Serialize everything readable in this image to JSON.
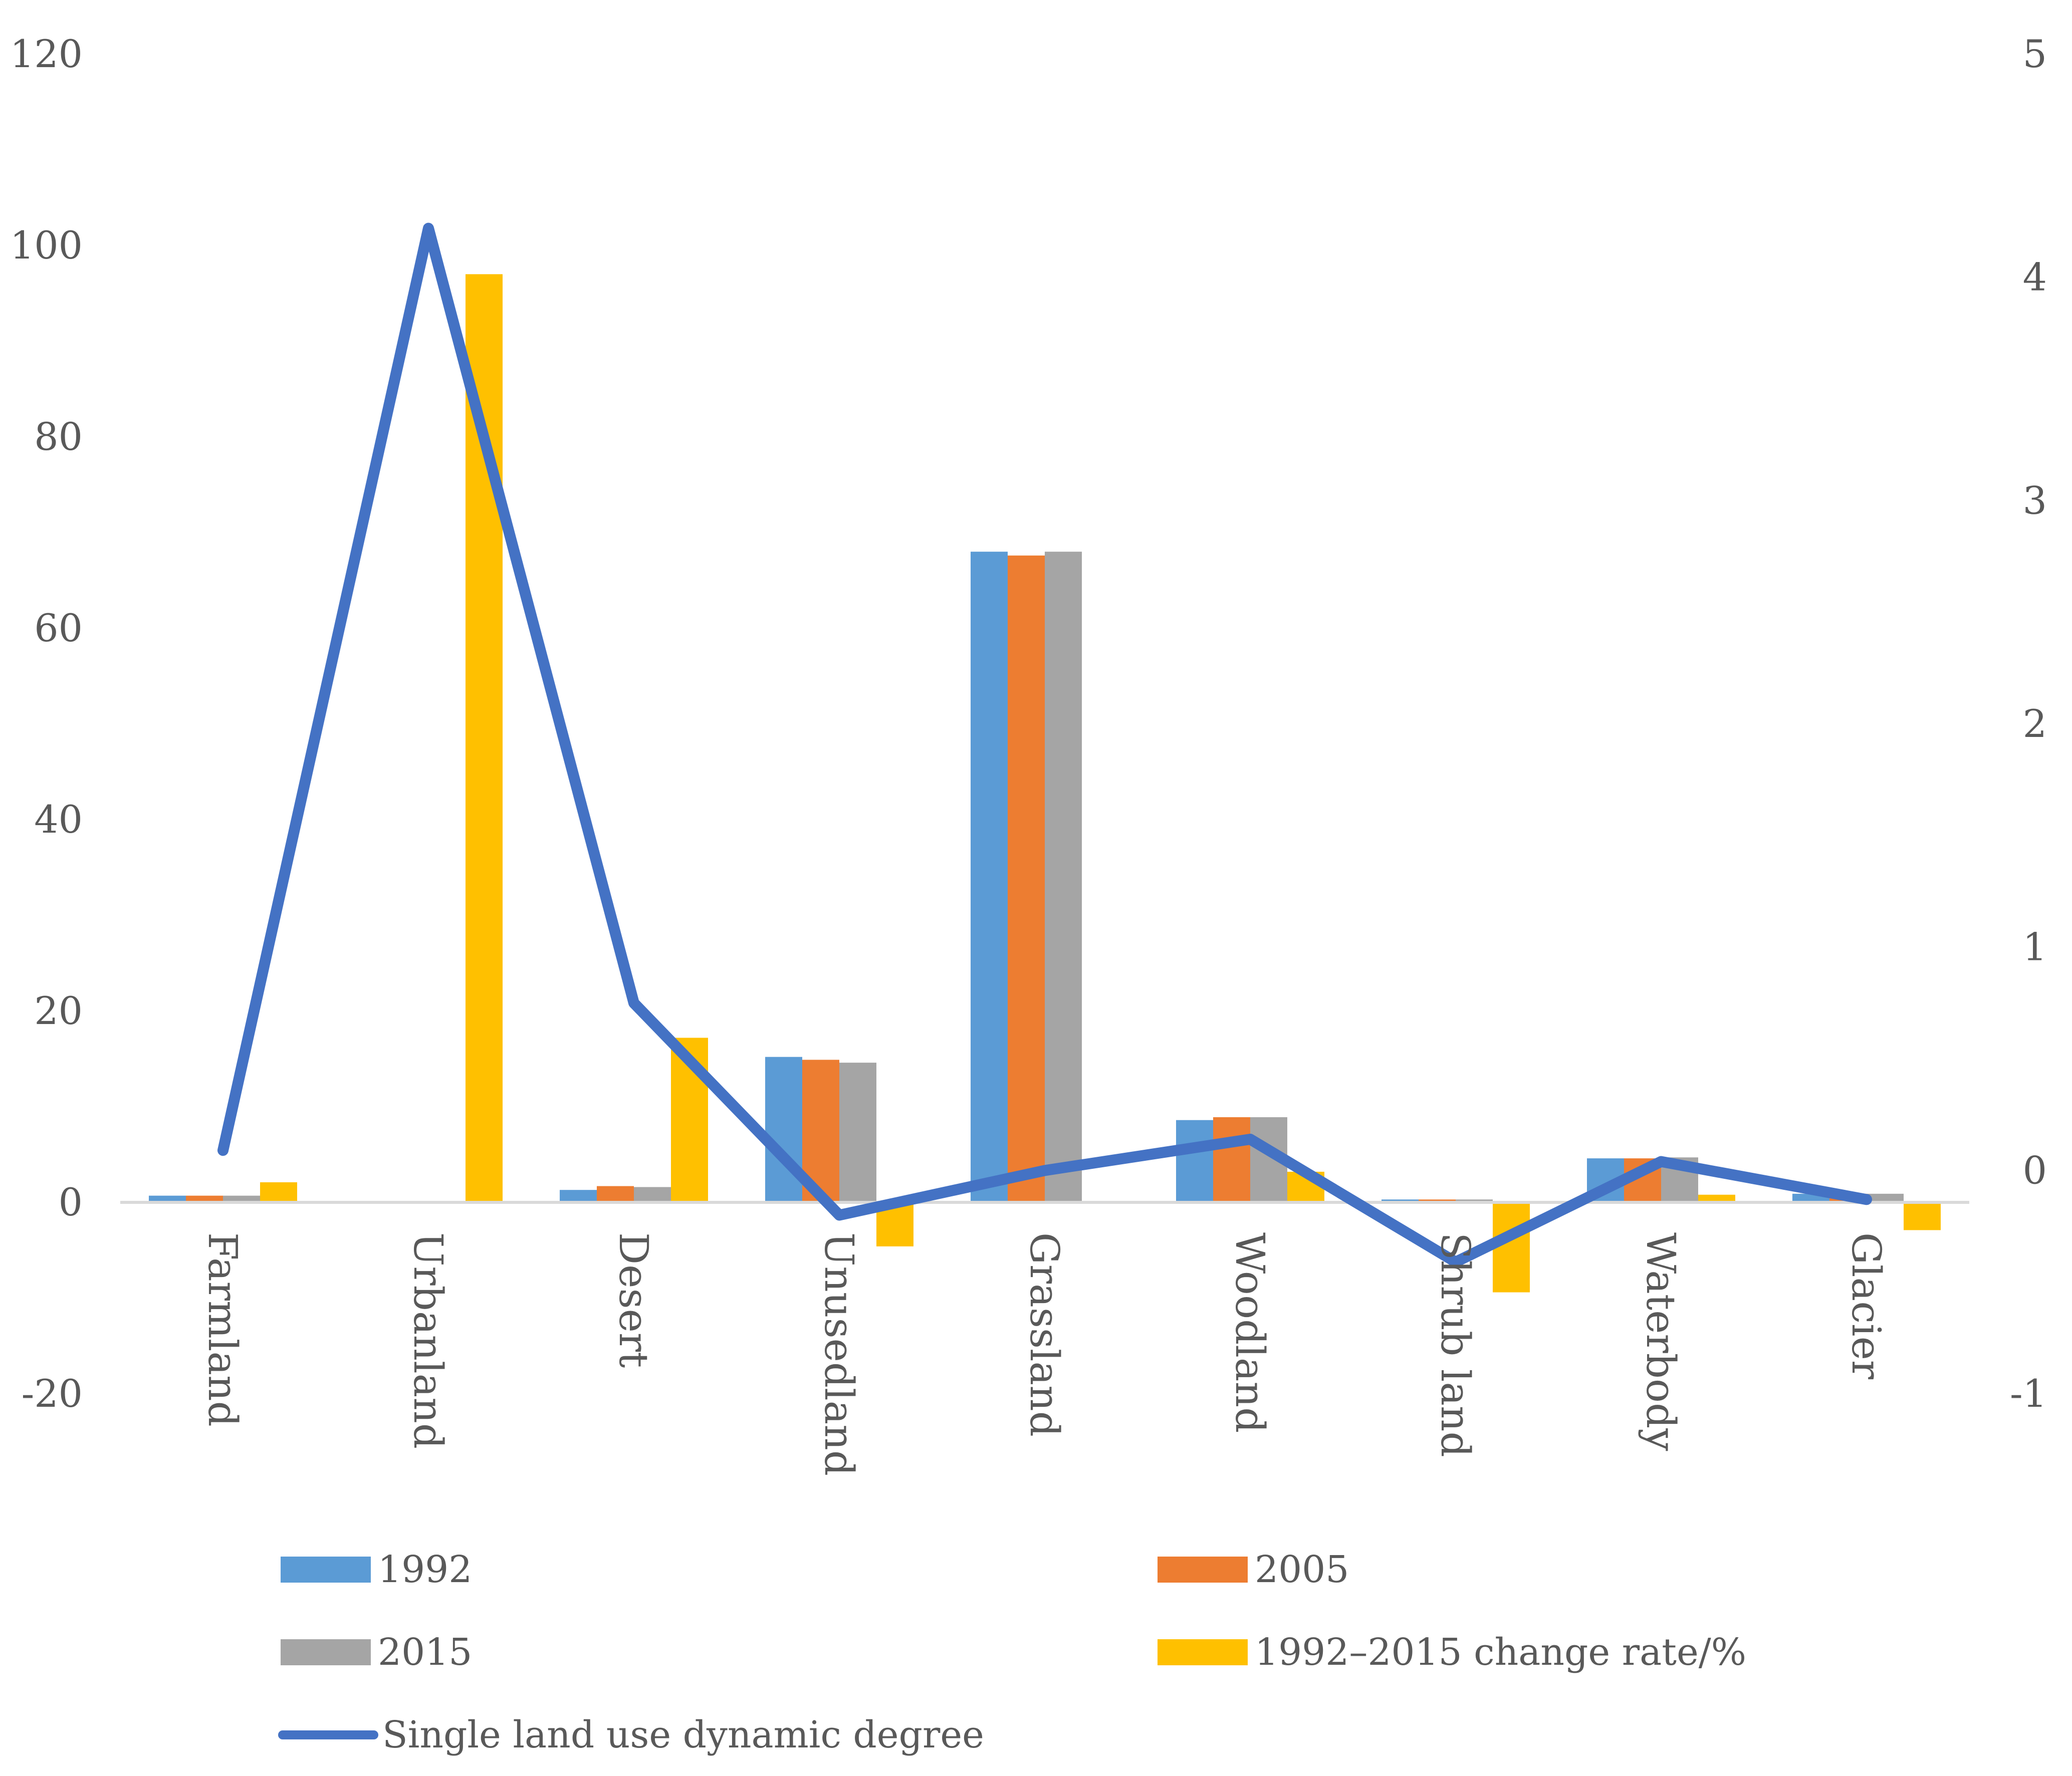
{
  "chart_data": {
    "type": "bar",
    "title": "",
    "xlabel": "",
    "ylabel": "",
    "categories": [
      "Farmland",
      "Urbanland",
      "Desert",
      "Unusedland",
      "Grassland",
      "Woodland",
      "Shrub land",
      "Waterbody",
      "Glacier"
    ],
    "ylim": [
      -20,
      120
    ],
    "yticks": [
      "120",
      "100",
      "80",
      "60",
      "40",
      "20",
      "0",
      "-20"
    ],
    "y2lim": [
      -1,
      5
    ],
    "y2ticks": [
      "5",
      "4",
      "3",
      "2",
      "1",
      "0",
      "-1"
    ],
    "grid": false,
    "legend_position": "bottom",
    "series": [
      {
        "name": "1992",
        "type": "bar",
        "color": "#5B9BD5",
        "values": [
          0.7,
          0.0,
          1.3,
          15.2,
          68.0,
          8.6,
          0.3,
          4.6,
          0.9
        ]
      },
      {
        "name": "2005",
        "type": "bar",
        "color": "#ED7D31",
        "values": [
          0.7,
          0.0,
          1.7,
          14.9,
          67.6,
          8.9,
          0.3,
          4.6,
          0.9
        ]
      },
      {
        "name": "2015",
        "type": "bar",
        "color": "#A5A5A5",
        "values": [
          0.7,
          0.0,
          1.6,
          14.6,
          68.0,
          8.9,
          0.3,
          4.7,
          0.9
        ]
      },
      {
        "name": "1992–2015 change rate/%",
        "type": "bar",
        "color": "#FFC000",
        "values": [
          2.1,
          97.0,
          17.2,
          -4.6,
          0.0,
          3.2,
          -9.4,
          0.8,
          -2.9
        ]
      },
      {
        "name": "Single land use dynamic degree",
        "type": "line",
        "axis": "right",
        "color": "#4472C4",
        "values": [
          0.09,
          4.22,
          0.75,
          -0.2,
          0.0,
          0.14,
          -0.41,
          0.04,
          -0.13
        ]
      }
    ]
  }
}
